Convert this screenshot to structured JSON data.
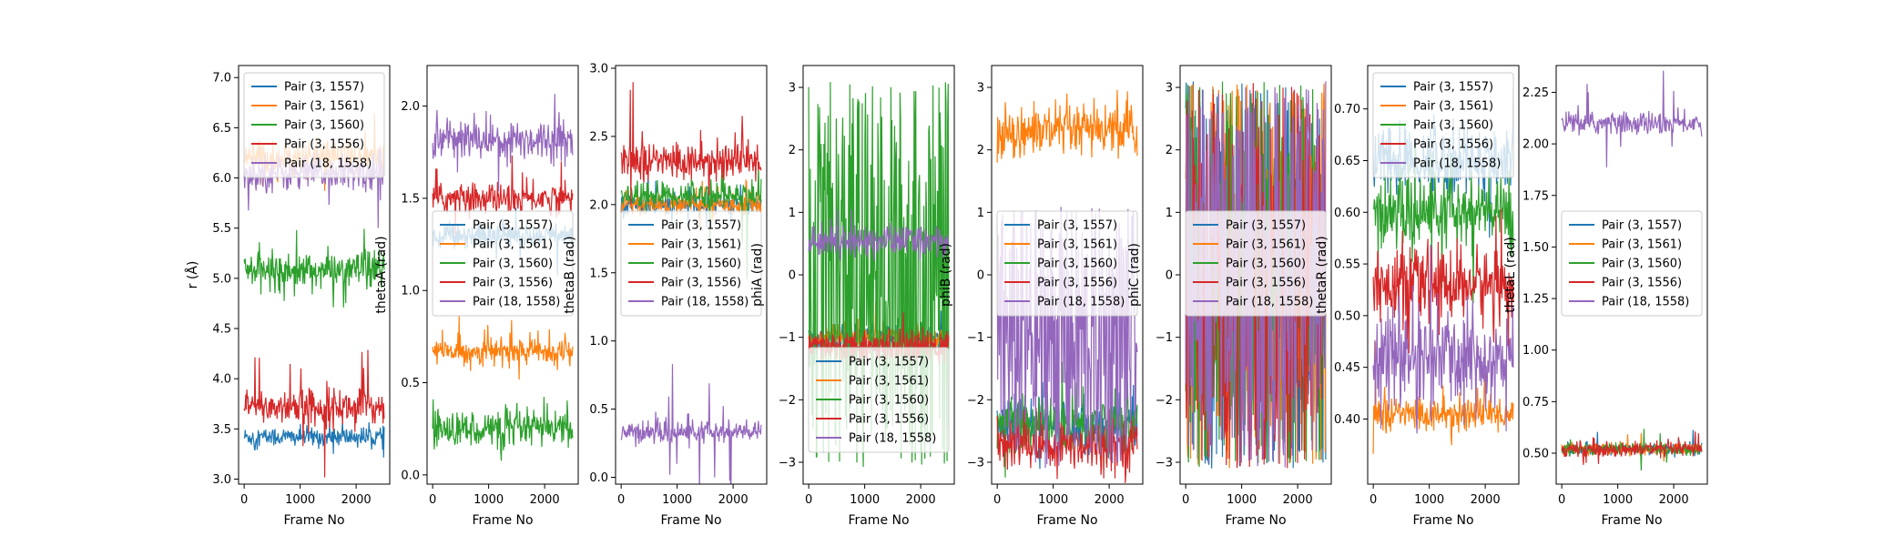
{
  "colors": {
    "blue": "#1f77b4",
    "orange": "#ff7f0e",
    "green": "#2ca02c",
    "red": "#d62728",
    "purple": "#9467bd"
  },
  "chart_data": [
    {
      "type": "line",
      "xlabel": "Frame No",
      "ylabel": "r (Å)",
      "xlim": [
        -100,
        2600
      ],
      "ylim": [
        2.95,
        7.12
      ],
      "xticks": [
        0,
        1000,
        2000
      ],
      "yticks": [
        3.0,
        3.5,
        4.0,
        4.5,
        5.0,
        5.5,
        6.0,
        6.5,
        7.0
      ],
      "ytick_labels": [
        "3.0",
        "3.5",
        "4.0",
        "4.5",
        "5.0",
        "5.5",
        "6.0",
        "6.5",
        "7.0"
      ],
      "legend": "upper-right",
      "series": [
        {
          "name": "Pair (3, 1557)",
          "color": "#1f77b4",
          "mean": 3.42,
          "noise": 0.07,
          "spike": 0.1
        },
        {
          "name": "Pair (3, 1561)",
          "color": "#ff7f0e",
          "mean": 6.2,
          "noise": 0.12,
          "spike": 0.2
        },
        {
          "name": "Pair (3, 1560)",
          "color": "#2ca02c",
          "mean": 5.08,
          "noise": 0.13,
          "spike": 0.2
        },
        {
          "name": "Pair (3, 1556)",
          "color": "#d62728",
          "mean": 3.72,
          "noise": 0.13,
          "spike": 0.4
        },
        {
          "name": "Pair (18, 1558)",
          "color": "#9467bd",
          "mean": 6.05,
          "noise": 0.13,
          "spike": 0.3
        }
      ]
    },
    {
      "type": "line",
      "xlabel": "Frame No",
      "ylabel": "thetaA (rad)",
      "xlim": [
        -100,
        2600
      ],
      "ylim": [
        -0.05,
        2.22
      ],
      "xticks": [
        0,
        1000,
        2000
      ],
      "yticks": [
        0.0,
        0.5,
        1.0,
        1.5,
        2.0
      ],
      "ytick_labels": [
        "0.0",
        "0.5",
        "1.0",
        "1.5",
        "2.0"
      ],
      "legend": "center-right",
      "series": [
        {
          "name": "Pair (3, 1557)",
          "color": "#1f77b4",
          "mean": 1.3,
          "noise": 0.05,
          "spike": 0.1
        },
        {
          "name": "Pair (3, 1561)",
          "color": "#ff7f0e",
          "mean": 0.67,
          "noise": 0.05,
          "spike": 0.1
        },
        {
          "name": "Pair (3, 1560)",
          "color": "#2ca02c",
          "mean": 0.25,
          "noise": 0.07,
          "spike": 0.1
        },
        {
          "name": "Pair (3, 1556)",
          "color": "#d62728",
          "mean": 1.5,
          "noise": 0.06,
          "spike": 0.1
        },
        {
          "name": "Pair (18, 1558)",
          "color": "#9467bd",
          "mean": 1.82,
          "noise": 0.08,
          "spike": 0.2
        }
      ]
    },
    {
      "type": "line",
      "xlabel": "Frame No",
      "ylabel": "thetaB (rad)",
      "xlim": [
        -100,
        2600
      ],
      "ylim": [
        -0.05,
        3.02
      ],
      "xticks": [
        0,
        1000,
        2000
      ],
      "yticks": [
        0.0,
        0.5,
        1.0,
        1.5,
        2.0,
        2.5,
        3.0
      ],
      "ytick_labels": [
        "0.0",
        "0.5",
        "1.0",
        "1.5",
        "2.0",
        "2.5",
        "3.0"
      ],
      "legend": "center-right",
      "series": [
        {
          "name": "Pair (3, 1557)",
          "color": "#1f77b4",
          "mean": 2.0,
          "noise": 0.05,
          "spike": 0.1
        },
        {
          "name": "Pair (3, 1561)",
          "color": "#ff7f0e",
          "mean": 2.0,
          "noise": 0.05,
          "spike": 0.1
        },
        {
          "name": "Pair (3, 1560)",
          "color": "#2ca02c",
          "mean": 2.07,
          "noise": 0.07,
          "spike": 0.3
        },
        {
          "name": "Pair (3, 1556)",
          "color": "#d62728",
          "mean": 2.32,
          "noise": 0.1,
          "spike": 0.25
        },
        {
          "name": "Pair (18, 1558)",
          "color": "#9467bd",
          "mean": 0.33,
          "noise": 0.06,
          "spike": 0.3
        }
      ]
    },
    {
      "type": "line",
      "xlabel": "Frame No",
      "ylabel": "phiA (rad)",
      "xlim": [
        -100,
        2600
      ],
      "ylim": [
        -3.35,
        3.35
      ],
      "xticks": [
        0,
        1000,
        2000
      ],
      "yticks": [
        -3,
        -2,
        -1,
        0,
        1,
        2,
        3
      ],
      "ytick_labels": [
        "−3",
        "−2",
        "−1",
        "0",
        "1",
        "2",
        "3"
      ],
      "legend": "lower-right",
      "series": [
        {
          "name": "Pair (3, 1557)",
          "color": "#1f77b4",
          "mean": -1.0,
          "noise": 0.15,
          "spike": 0.2
        },
        {
          "name": "Pair (3, 1561)",
          "color": "#ff7f0e",
          "mean": -1.0,
          "noise": 0.15,
          "spike": 0.2
        },
        {
          "name": "Pair (3, 1560)",
          "color": "#2ca02c",
          "mean": 0.0,
          "noise": 3.1,
          "spike": 0.0
        },
        {
          "name": "Pair (3, 1556)",
          "color": "#d62728",
          "mean": -1.15,
          "noise": 0.18,
          "spike": 0.3
        },
        {
          "name": "Pair (18, 1558)",
          "color": "#9467bd",
          "mean": 0.55,
          "noise": 0.18,
          "spike": 0.3
        }
      ]
    },
    {
      "type": "line",
      "xlabel": "Frame No",
      "ylabel": "phiB (rad)",
      "xlim": [
        -100,
        2600
      ],
      "ylim": [
        -3.35,
        3.35
      ],
      "xticks": [
        0,
        1000,
        2000
      ],
      "yticks": [
        -3,
        -2,
        -1,
        0,
        1,
        2,
        3
      ],
      "ytick_labels": [
        "−3",
        "−2",
        "−1",
        "0",
        "1",
        "2",
        "3"
      ],
      "legend": "center-right",
      "series": [
        {
          "name": "Pair (3, 1557)",
          "color": "#1f77b4",
          "mean": -2.4,
          "noise": 0.3,
          "spike": 0.3
        },
        {
          "name": "Pair (3, 1561)",
          "color": "#ff7f0e",
          "mean": 2.3,
          "noise": 0.3,
          "spike": 0.3
        },
        {
          "name": "Pair (3, 1560)",
          "color": "#2ca02c",
          "mean": -2.4,
          "noise": 0.35,
          "spike": 0.4
        },
        {
          "name": "Pair (3, 1556)",
          "color": "#d62728",
          "mean": -2.7,
          "noise": 0.3,
          "spike": 0.3
        },
        {
          "name": "Pair (18, 1558)",
          "color": "#9467bd",
          "mean": -1.0,
          "noise": 2.1,
          "spike": 0.0
        }
      ]
    },
    {
      "type": "line",
      "xlabel": "Frame No",
      "ylabel": "phiC (rad)",
      "xlim": [
        -100,
        2600
      ],
      "ylim": [
        -3.35,
        3.35
      ],
      "xticks": [
        0,
        1000,
        2000
      ],
      "yticks": [
        -3,
        -2,
        -1,
        0,
        1,
        2,
        3
      ],
      "ytick_labels": [
        "−3",
        "−2",
        "−1",
        "0",
        "1",
        "2",
        "3"
      ],
      "legend": "center-right",
      "series": [
        {
          "name": "Pair (3, 1557)",
          "color": "#1f77b4",
          "mean": 0.0,
          "noise": 3.1,
          "spike": 0.0
        },
        {
          "name": "Pair (3, 1561)",
          "color": "#ff7f0e",
          "mean": 0.0,
          "noise": 3.1,
          "spike": 0.0
        },
        {
          "name": "Pair (3, 1560)",
          "color": "#2ca02c",
          "mean": 0.0,
          "noise": 3.1,
          "spike": 0.0
        },
        {
          "name": "Pair (3, 1556)",
          "color": "#d62728",
          "mean": 0.0,
          "noise": 3.1,
          "spike": 0.0
        },
        {
          "name": "Pair (18, 1558)",
          "color": "#9467bd",
          "mean": 0.0,
          "noise": 3.1,
          "spike": 0.0
        }
      ]
    },
    {
      "type": "line",
      "xlabel": "Frame No",
      "ylabel": "thetaR (rad)",
      "xlim": [
        -100,
        2600
      ],
      "ylim": [
        0.337,
        0.742
      ],
      "xticks": [
        0,
        1000,
        2000
      ],
      "yticks": [
        0.4,
        0.45,
        0.5,
        0.55,
        0.6,
        0.65,
        0.7
      ],
      "ytick_labels": [
        "0.40",
        "0.45",
        "0.50",
        "0.55",
        "0.60",
        "0.65",
        "0.70"
      ],
      "legend": "upper-left",
      "series": [
        {
          "name": "Pair (3, 1557)",
          "color": "#1f77b4",
          "mean": 0.65,
          "noise": 0.025,
          "spike": 0.03
        },
        {
          "name": "Pair (3, 1561)",
          "color": "#ff7f0e",
          "mean": 0.405,
          "noise": 0.012,
          "spike": 0.03
        },
        {
          "name": "Pair (3, 1560)",
          "color": "#2ca02c",
          "mean": 0.6,
          "noise": 0.025,
          "spike": 0.04
        },
        {
          "name": "Pair (3, 1556)",
          "color": "#d62728",
          "mean": 0.53,
          "noise": 0.025,
          "spike": 0.03
        },
        {
          "name": "Pair (18, 1558)",
          "color": "#9467bd",
          "mean": 0.46,
          "noise": 0.035,
          "spike": 0.03
        }
      ]
    },
    {
      "type": "line",
      "xlabel": "Frame No",
      "ylabel": "thetaL (rad)",
      "xlim": [
        -100,
        2600
      ],
      "ylim": [
        0.35,
        2.38
      ],
      "xticks": [
        0,
        1000,
        2000
      ],
      "yticks": [
        0.5,
        0.75,
        1.0,
        1.25,
        1.5,
        1.75,
        2.0,
        2.25
      ],
      "ytick_labels": [
        "0.50",
        "0.75",
        "1.00",
        "1.25",
        "1.50",
        "1.75",
        "2.00",
        "2.25"
      ],
      "legend": "center-right",
      "series": [
        {
          "name": "Pair (3, 1557)",
          "color": "#1f77b4",
          "mean": 0.52,
          "noise": 0.02,
          "spike": 0.05
        },
        {
          "name": "Pair (3, 1561)",
          "color": "#ff7f0e",
          "mean": 0.52,
          "noise": 0.02,
          "spike": 0.05
        },
        {
          "name": "Pair (3, 1560)",
          "color": "#2ca02c",
          "mean": 0.52,
          "noise": 0.02,
          "spike": 0.05
        },
        {
          "name": "Pair (3, 1556)",
          "color": "#d62728",
          "mean": 0.52,
          "noise": 0.025,
          "spike": 0.05
        },
        {
          "name": "Pair (18, 1558)",
          "color": "#9467bd",
          "mean": 2.1,
          "noise": 0.04,
          "spike": 0.12
        }
      ]
    }
  ]
}
